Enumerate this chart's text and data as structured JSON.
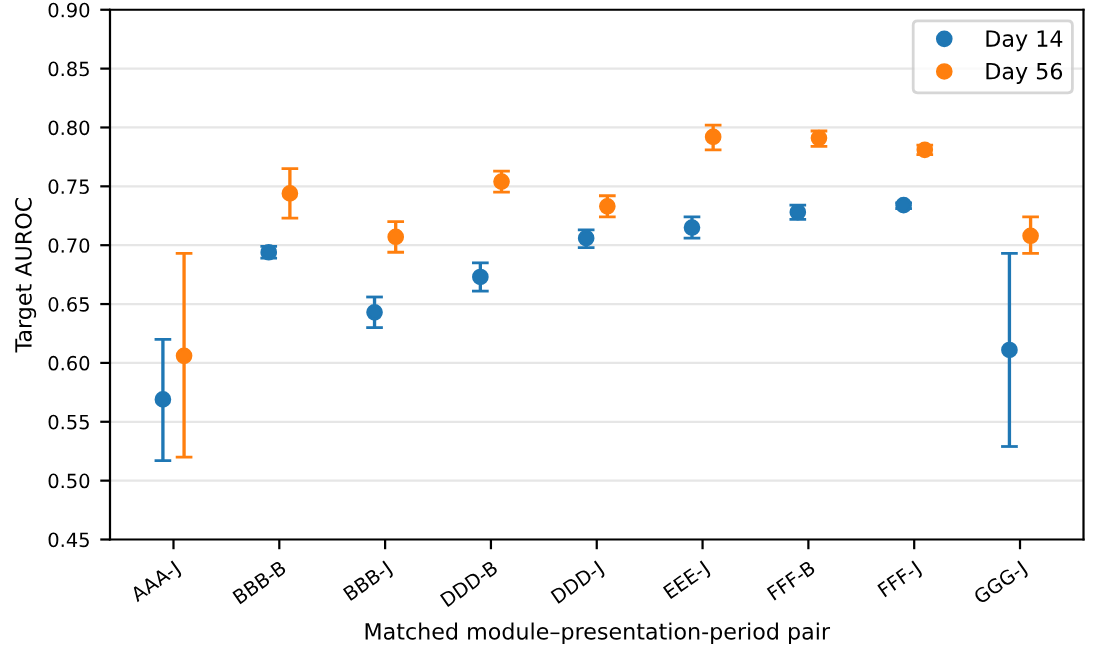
{
  "chart_data": {
    "type": "scatter",
    "xlabel": "Matched module–presentation-period pair",
    "ylabel": "Target AUROC",
    "categories": [
      "AAA-J",
      "BBB-B",
      "BBB-J",
      "DDD-B",
      "DDD-J",
      "EEE-J",
      "FFF-B",
      "FFF-J",
      "GGG-J"
    ],
    "series": [
      {
        "name": "Day 14",
        "color": "#1f77b4",
        "values": [
          0.569,
          0.694,
          0.643,
          0.673,
          0.706,
          0.715,
          0.728,
          0.734,
          0.611
        ],
        "errors": [
          [
            0.517,
            0.62
          ],
          [
            0.689,
            0.699
          ],
          [
            0.63,
            0.656
          ],
          [
            0.661,
            0.685
          ],
          [
            0.698,
            0.713
          ],
          [
            0.706,
            0.724
          ],
          [
            0.722,
            0.734
          ],
          [
            0.731,
            0.736
          ],
          [
            0.529,
            0.693
          ]
        ]
      },
      {
        "name": "Day 56",
        "color": "#ff7f0e",
        "values": [
          0.606,
          0.744,
          0.707,
          0.754,
          0.733,
          0.792,
          0.791,
          0.781,
          0.708
        ],
        "errors": [
          [
            0.52,
            0.693
          ],
          [
            0.723,
            0.765
          ],
          [
            0.694,
            0.72
          ],
          [
            0.745,
            0.763
          ],
          [
            0.724,
            0.742
          ],
          [
            0.781,
            0.802
          ],
          [
            0.784,
            0.797
          ],
          [
            0.777,
            0.785
          ],
          [
            0.693,
            0.724
          ]
        ]
      }
    ],
    "ylim": [
      0.45,
      0.9
    ],
    "yticks": [
      0.45,
      {
        "value": 0.5,
        "label": "0.50"
      },
      0.55,
      {
        "value": 0.6,
        "label": "0.60"
      },
      0.65,
      {
        "value": 0.7,
        "label": "0.70"
      },
      0.75,
      {
        "value": 0.8,
        "label": "0.80"
      },
      0.85,
      {
        "value": 0.9,
        "label": "0.90"
      }
    ],
    "grid": "y",
    "legend": "top right",
    "marker": "circle"
  }
}
